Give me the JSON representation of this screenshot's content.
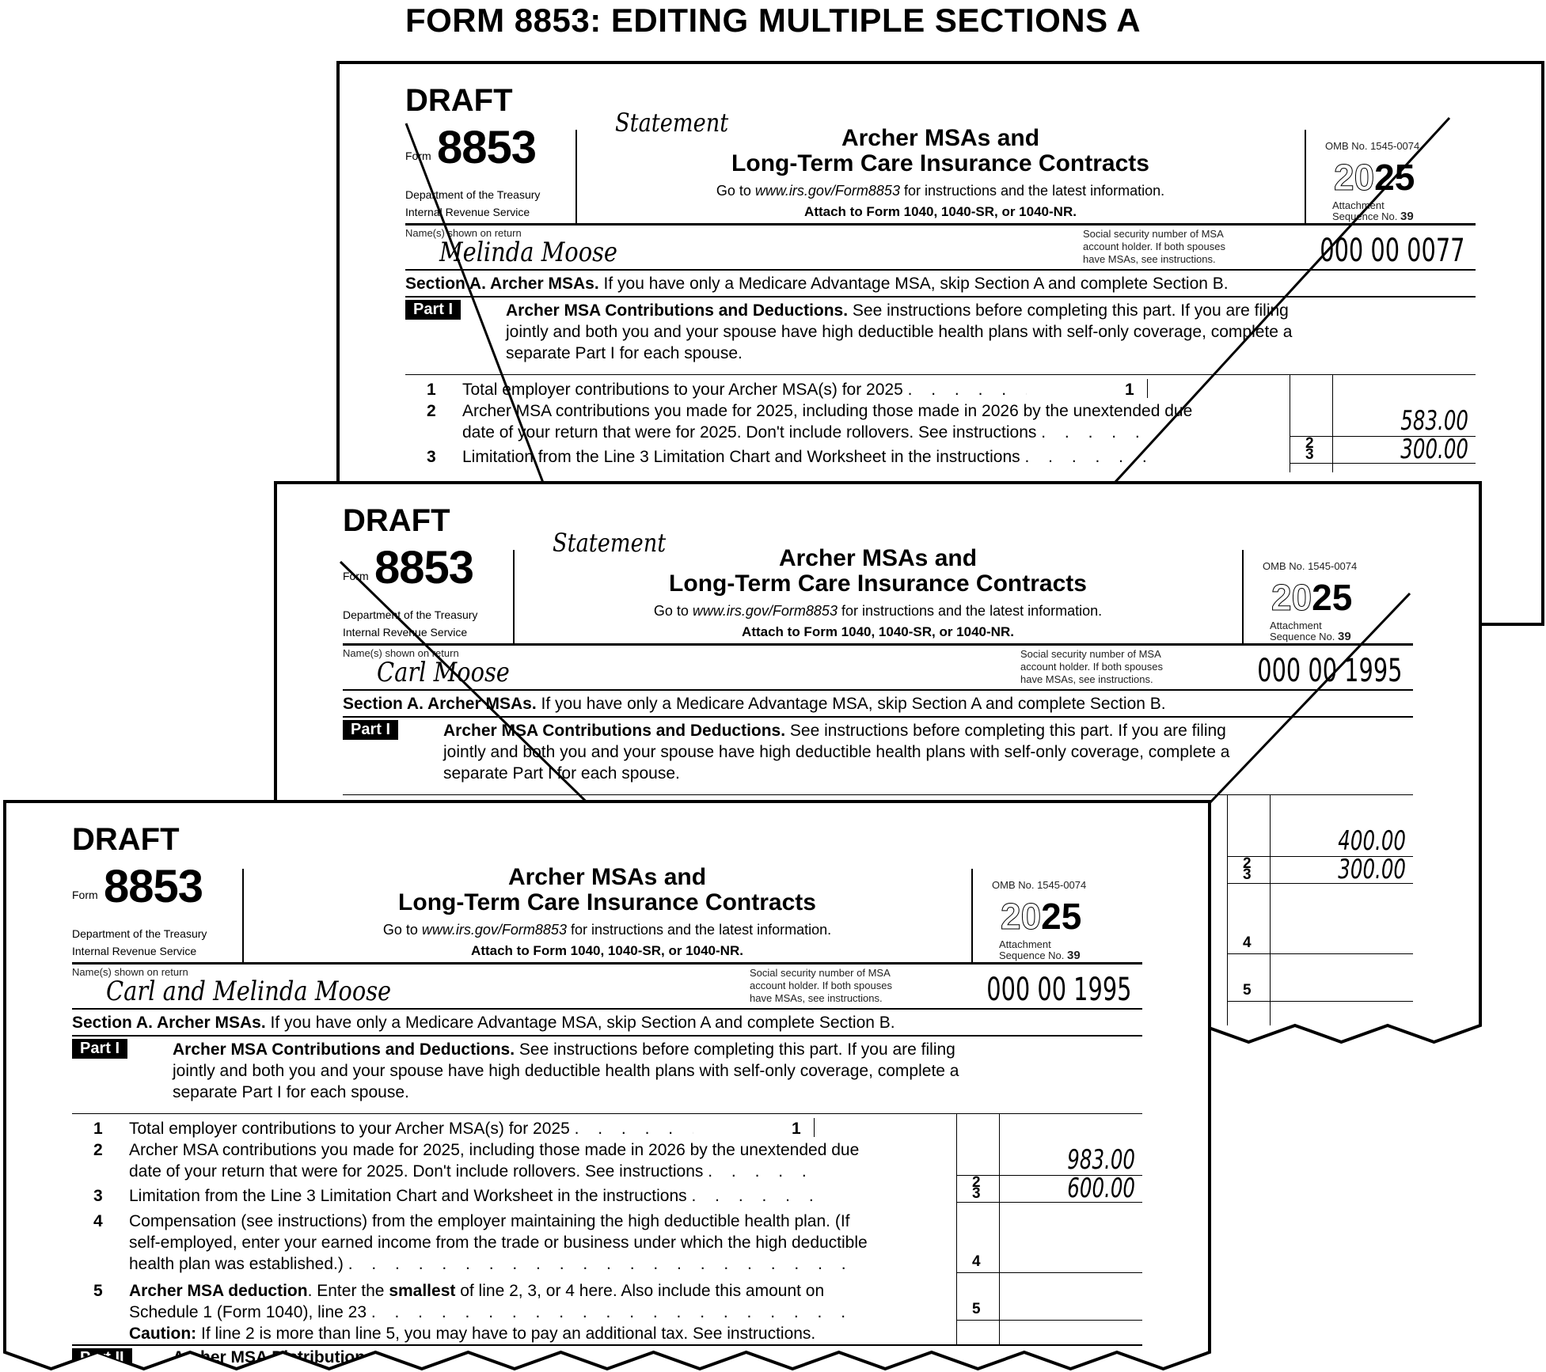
{
  "header": {
    "title": "FORM 8853: EDITING MULTIPLE SECTIONS A"
  },
  "form_text": {
    "draft": "DRAFT",
    "form_label": "Form",
    "form_number": "8853",
    "dept_line1": "Department of the Treasury",
    "dept_line2": "Internal Revenue Service",
    "title_line1": "Archer MSAs and",
    "title_line2": "Long-Term Care Insurance Contracts",
    "goto_prefix": "Go to ",
    "goto_url": "www.irs.gov/Form8853",
    "goto_suffix": " for instructions and the latest information.",
    "attach": "Attach to Form 1040, 1040-SR, or 1040-NR.",
    "omb": "OMB No. 1545-0074",
    "year_ghost": "20",
    "year_bold": "25",
    "attachment": "Attachment",
    "sequence_label": "Sequence No.",
    "sequence_no": "39",
    "names_label": "Name(s) shown on return",
    "ssn_label1": "Social security number of MSA",
    "ssn_label2": "account holder. If both spouses",
    "ssn_label3": "have MSAs, see instructions.",
    "section_a_bold": "Section A.  Archer MSAs.",
    "section_a_text": " If you have only a Medicare Advantage MSA, skip Section A and complete Section B.",
    "part1_badge": "Part I",
    "part1_bold": "Archer MSA Contributions and Deductions.",
    "part1_line1": " See instructions before completing this part. If you are filing",
    "part1_line2": "jointly and both you and your spouse have high deductible health plans with self-only coverage, complete a",
    "part1_line3": "separate Part I for each spouse.",
    "line1_no": "1",
    "line1_text": "Total employer contributions to your Archer MSA(s) for 2025",
    "line2_no": "2",
    "line2_text_a": "Archer MSA contributions you made for 2025, including those made in 2026 by the unextended due",
    "line2_text_b": "date of your return that were for 2025. Don't include rollovers. See instructions",
    "line3_no": "3",
    "line3_text": "Limitation from the Line 3 Limitation Chart and Worksheet in the instructions",
    "line4_no": "4",
    "line4_text_a": "Compensation (see instructions) from the employer maintaining the high deductible health plan. (If",
    "line4_text_b": "self-employed, enter your earned income from the trade or business under which the high deductible",
    "line4_text_c": "health plan was established.)",
    "line5_no": "5",
    "line5_bold": "Archer MSA deduction",
    "line5_text_a": ". Enter the ",
    "line5_smallest": "smallest",
    "line5_text_b": " of line 2, 3, or 4 here. Also include this amount on",
    "line5_text_c": "Schedule 1 (Form 1040), line 23",
    "caution_bold": "Caution:",
    "caution_text": " If line 2 is more than line 5, you may have to pay an additional tax. See instructions.",
    "part2_badge": "Part II",
    "part2_title": "Archer MSA Distributions",
    "leader_dots": ". . . . . . . . . . . . . . . . . . . . . . . . . . . ."
  },
  "pages": [
    {
      "statement": "Statement",
      "name": "Melinda Moose",
      "ssn": "000 00 0077",
      "line2": "583.00",
      "line3": "300.00",
      "struck": true
    },
    {
      "statement": "Statement",
      "name": "Carl Moose",
      "ssn": "000 00 1995",
      "line2": "400.00",
      "line3": "300.00",
      "struck": true
    },
    {
      "statement": "",
      "name": "Carl and Melinda Moose",
      "ssn": "000 00 1995",
      "line2": "983.00",
      "line3": "600.00",
      "struck": false
    }
  ]
}
